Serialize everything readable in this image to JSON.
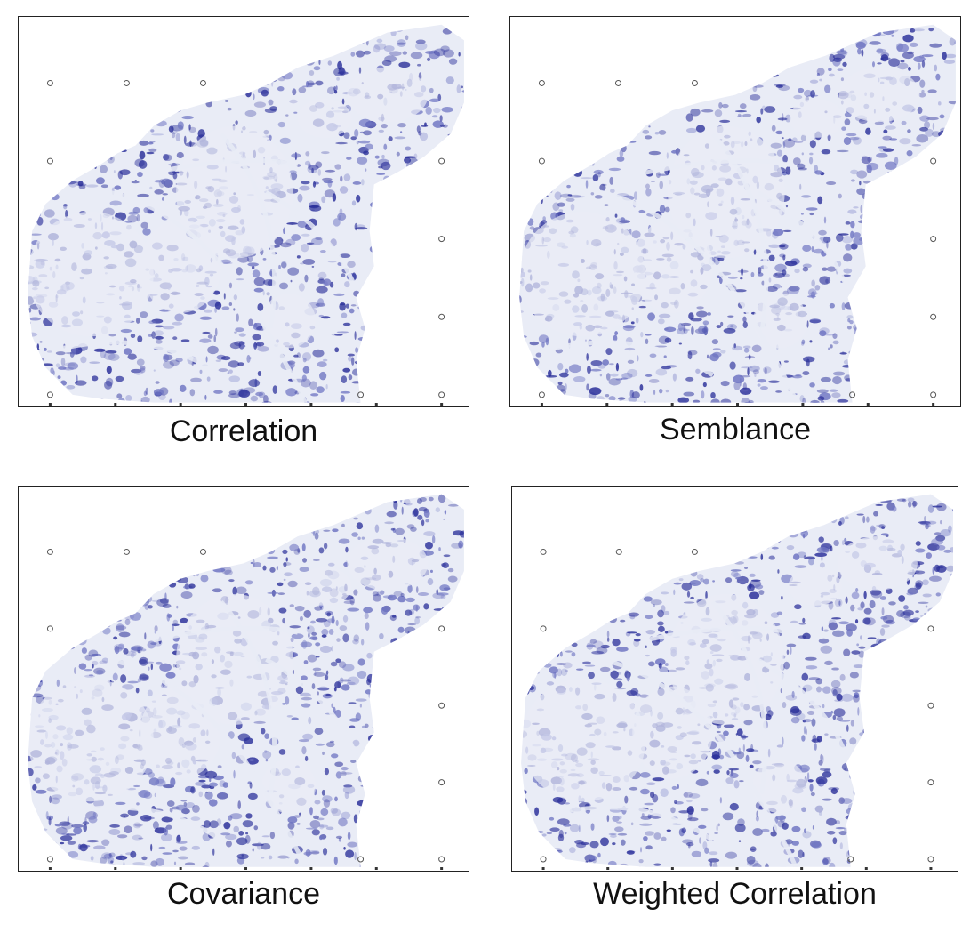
{
  "panels": [
    {
      "id": "correlation",
      "caption": "Correlation",
      "seed": 11
    },
    {
      "id": "semblance",
      "caption": "Semblance",
      "seed": 23
    },
    {
      "id": "covariance",
      "caption": "Covariance",
      "seed": 37
    },
    {
      "id": "weighted-correlation",
      "caption": "Weighted Correlation",
      "seed": 53
    }
  ],
  "colors": {
    "background": "#ffffff",
    "map_light": "#e9ecf6",
    "map_dark": "#2a2f9a",
    "map_mid": "#6e74c2",
    "frame": "#222222",
    "well_marker": "#555555"
  }
}
